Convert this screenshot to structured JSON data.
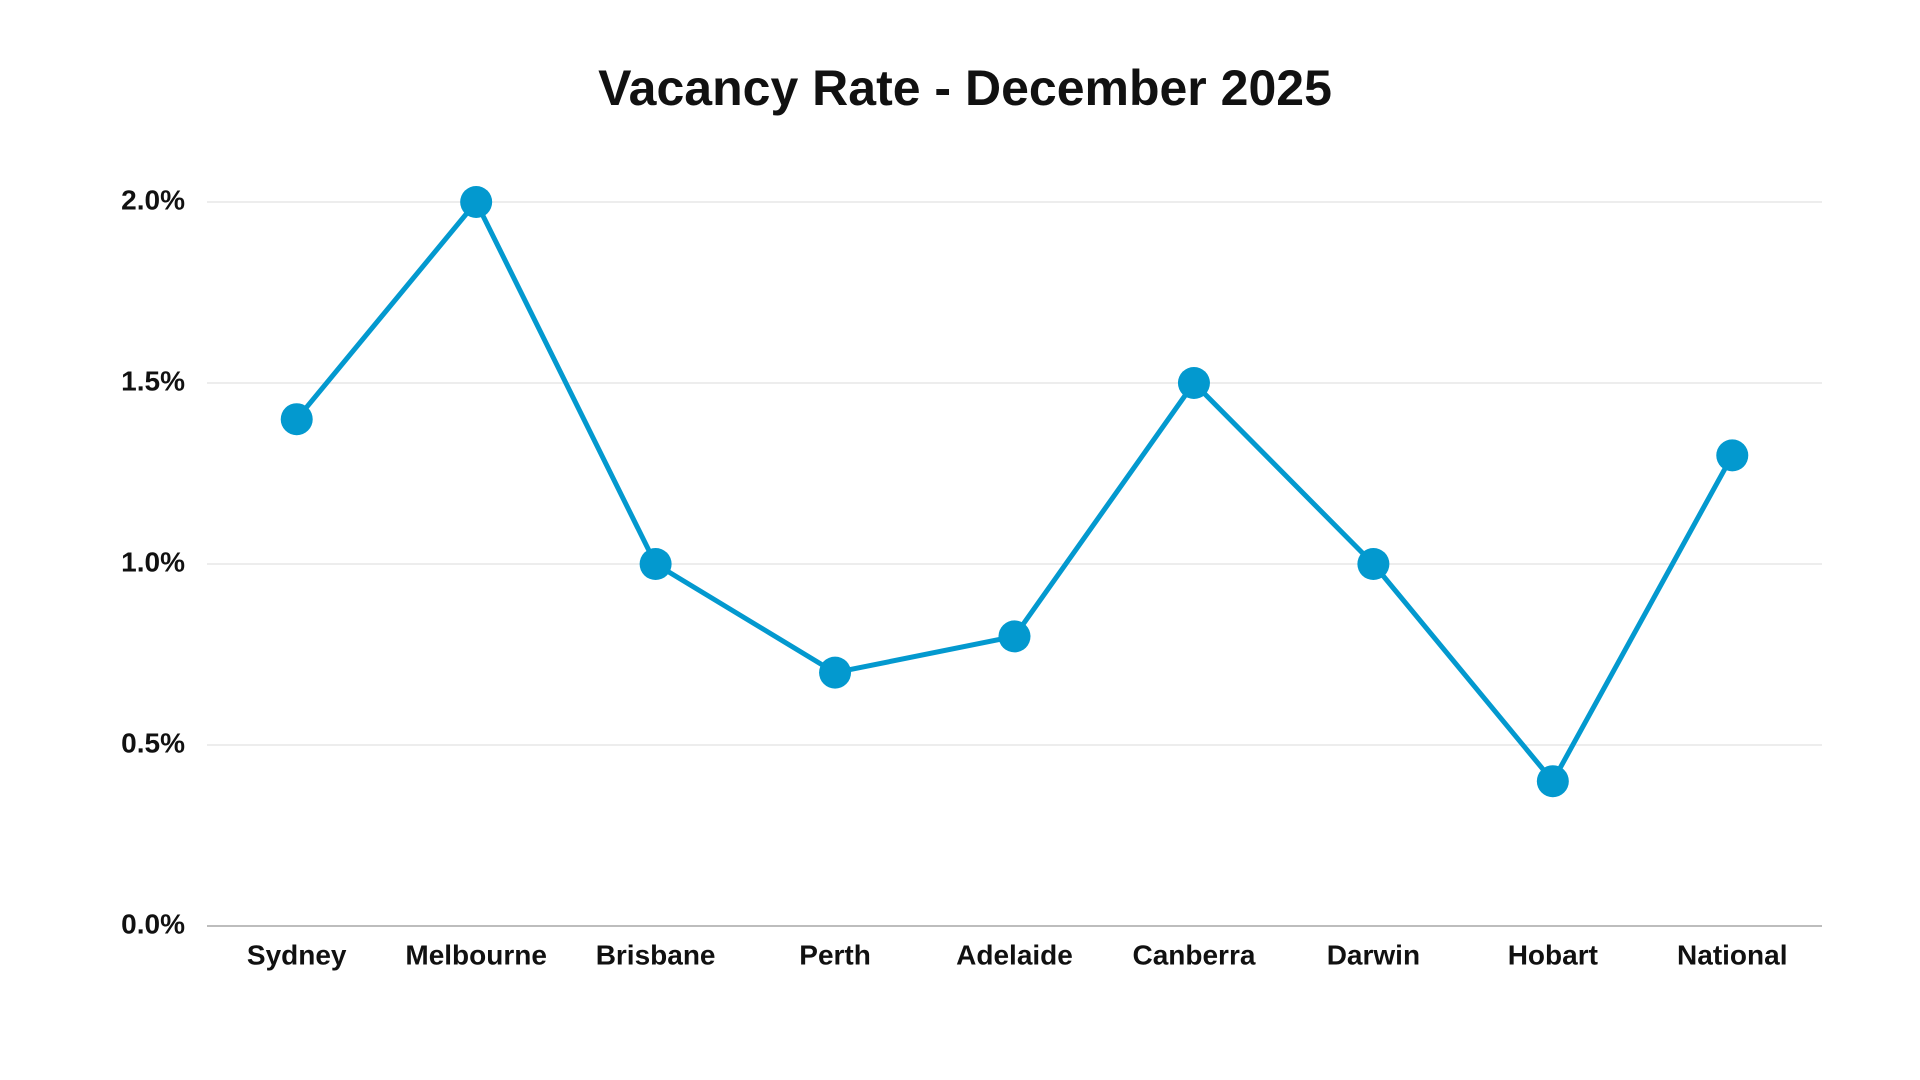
{
  "chart_data": {
    "type": "line",
    "title": "Vacancy Rate - December 2025",
    "categories": [
      "Sydney",
      "Melbourne",
      "Brisbane",
      "Perth",
      "Adelaide",
      "Canberra",
      "Darwin",
      "Hobart",
      "National"
    ],
    "values": [
      1.4,
      2.0,
      1.0,
      0.7,
      0.8,
      1.5,
      1.0,
      0.4,
      1.3
    ],
    "color": "#0399cf",
    "ylim": [
      0,
      2
    ],
    "yticks": [
      {
        "value": 0,
        "label": "0.0%"
      },
      {
        "value": 0.5,
        "label": "0.5%"
      },
      {
        "value": 1,
        "label": "1.0%"
      },
      {
        "value": 1.5,
        "label": "1.5%"
      },
      {
        "value": 2,
        "label": "2.0%"
      }
    ],
    "grid": true
  }
}
